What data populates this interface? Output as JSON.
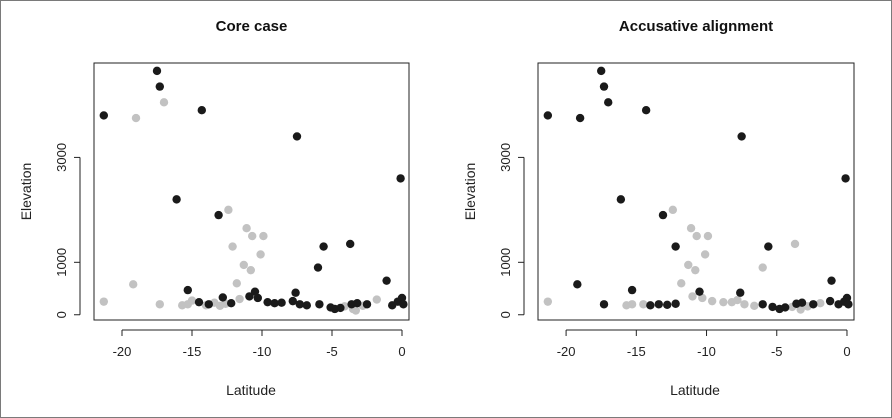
{
  "chart_data": [
    {
      "type": "scatter",
      "title": "Core case",
      "xlabel": "Latitude",
      "ylabel": "Elevation",
      "xlim": [
        -22,
        0.5
      ],
      "ylim": [
        -100,
        4800
      ],
      "xticks": [
        "-20",
        "-15",
        "-10",
        "-5",
        "0"
      ],
      "xtick_values": [
        -20,
        -15,
        -10,
        -5,
        0
      ],
      "yticks": [
        "0",
        "1000",
        "3000"
      ],
      "ytick_values": [
        0,
        1000,
        3000
      ],
      "grid": false,
      "colors": {
        "black": "#1a1a1a",
        "gray": "#c2c2c2"
      },
      "series": [
        {
          "color": "black",
          "points": [
            [
              -21.3,
              3800
            ],
            [
              -17.5,
              4650
            ],
            [
              -17.3,
              4350
            ],
            [
              -14.3,
              3900
            ],
            [
              -7.5,
              3400
            ],
            [
              -16.1,
              2200
            ],
            [
              -13.1,
              1900
            ],
            [
              -0.1,
              2600
            ],
            [
              -5.6,
              1300
            ],
            [
              -3.7,
              1350
            ],
            [
              -6.0,
              900
            ],
            [
              -1.1,
              650
            ],
            [
              -15.3,
              470
            ],
            [
              -10.5,
              440
            ],
            [
              -7.6,
              420
            ],
            [
              -14.5,
              240
            ],
            [
              -13.8,
              200
            ],
            [
              -12.8,
              330
            ],
            [
              -12.2,
              220
            ],
            [
              -10.9,
              350
            ],
            [
              -10.3,
              320
            ],
            [
              -9.6,
              240
            ],
            [
              -9.1,
              220
            ],
            [
              -8.6,
              230
            ],
            [
              -7.8,
              260
            ],
            [
              -7.3,
              200
            ],
            [
              -6.8,
              180
            ],
            [
              -5.9,
              200
            ],
            [
              -5.1,
              140
            ],
            [
              -4.8,
              110
            ],
            [
              -4.4,
              130
            ],
            [
              -3.6,
              200
            ],
            [
              -3.2,
              220
            ],
            [
              -2.5,
              200
            ],
            [
              -0.7,
              180
            ],
            [
              -0.3,
              250
            ],
            [
              0.0,
              320
            ],
            [
              0.1,
              200
            ]
          ]
        },
        {
          "color": "gray",
          "points": [
            [
              -19.0,
              3750
            ],
            [
              -17.0,
              4050
            ],
            [
              -12.4,
              2000
            ],
            [
              -11.1,
              1650
            ],
            [
              -9.9,
              1500
            ],
            [
              -12.1,
              1300
            ],
            [
              -10.7,
              1500
            ],
            [
              -11.3,
              950
            ],
            [
              -10.8,
              850
            ],
            [
              -10.1,
              1150
            ],
            [
              -19.2,
              580
            ],
            [
              -11.8,
              600
            ],
            [
              -21.3,
              250
            ],
            [
              -17.3,
              200
            ],
            [
              -15.7,
              180
            ],
            [
              -15.3,
              200
            ],
            [
              -15.0,
              270
            ],
            [
              -14.0,
              180
            ],
            [
              -13.4,
              230
            ],
            [
              -13.0,
              170
            ],
            [
              -12.6,
              210
            ],
            [
              -11.6,
              300
            ],
            [
              -4.1,
              160
            ],
            [
              -3.5,
              110
            ],
            [
              -3.3,
              80
            ],
            [
              -2.8,
              170
            ],
            [
              -1.8,
              290
            ]
          ]
        }
      ]
    },
    {
      "type": "scatter",
      "title": "Accusative alignment",
      "xlabel": "Latitude",
      "ylabel": "Elevation",
      "xlim": [
        -22,
        0.5
      ],
      "ylim": [
        -100,
        4800
      ],
      "xticks": [
        "-20",
        "-15",
        "-10",
        "-5",
        "0"
      ],
      "xtick_values": [
        -20,
        -15,
        -10,
        -5,
        0
      ],
      "yticks": [
        "0",
        "1000",
        "3000"
      ],
      "ytick_values": [
        0,
        1000,
        3000
      ],
      "grid": false,
      "colors": {
        "black": "#1a1a1a",
        "gray": "#c2c2c2"
      },
      "series": [
        {
          "color": "black",
          "points": [
            [
              -21.3,
              3800
            ],
            [
              -19.0,
              3750
            ],
            [
              -17.5,
              4650
            ],
            [
              -17.3,
              4350
            ],
            [
              -17.0,
              4050
            ],
            [
              -14.3,
              3900
            ],
            [
              -7.5,
              3400
            ],
            [
              -16.1,
              2200
            ],
            [
              -13.1,
              1900
            ],
            [
              -0.1,
              2600
            ],
            [
              -5.6,
              1300
            ],
            [
              -12.2,
              1300
            ],
            [
              -1.1,
              650
            ],
            [
              -19.2,
              580
            ],
            [
              -15.3,
              470
            ],
            [
              -10.5,
              440
            ],
            [
              -7.6,
              420
            ],
            [
              -17.3,
              200
            ],
            [
              -14.0,
              180
            ],
            [
              -13.4,
              200
            ],
            [
              -12.8,
              190
            ],
            [
              -12.2,
              210
            ],
            [
              -6.0,
              200
            ],
            [
              -5.3,
              150
            ],
            [
              -4.8,
              110
            ],
            [
              -4.4,
              140
            ],
            [
              -3.6,
              210
            ],
            [
              -3.2,
              230
            ],
            [
              -2.4,
              200
            ],
            [
              -1.2,
              260
            ],
            [
              -0.6,
              200
            ],
            [
              -0.2,
              250
            ],
            [
              0.0,
              320
            ],
            [
              0.1,
              200
            ]
          ]
        },
        {
          "color": "gray",
          "points": [
            [
              -12.4,
              2000
            ],
            [
              -11.1,
              1650
            ],
            [
              -9.9,
              1500
            ],
            [
              -10.7,
              1500
            ],
            [
              -11.3,
              950
            ],
            [
              -10.8,
              850
            ],
            [
              -10.1,
              1150
            ],
            [
              -3.7,
              1350
            ],
            [
              -6.0,
              900
            ],
            [
              -11.8,
              600
            ],
            [
              -21.3,
              250
            ],
            [
              -15.7,
              180
            ],
            [
              -15.3,
              200
            ],
            [
              -14.5,
              200
            ],
            [
              -11.0,
              350
            ],
            [
              -10.3,
              320
            ],
            [
              -9.6,
              260
            ],
            [
              -8.8,
              240
            ],
            [
              -8.2,
              240
            ],
            [
              -7.8,
              280
            ],
            [
              -7.3,
              200
            ],
            [
              -6.6,
              170
            ],
            [
              -3.9,
              150
            ],
            [
              -3.3,
              100
            ],
            [
              -2.8,
              160
            ],
            [
              -1.9,
              220
            ]
          ]
        }
      ]
    }
  ]
}
